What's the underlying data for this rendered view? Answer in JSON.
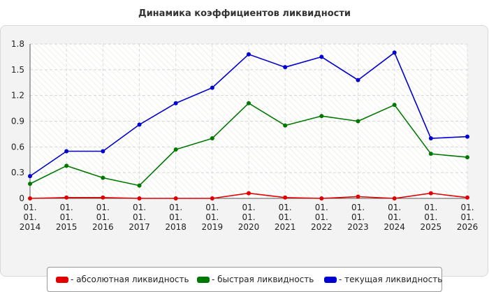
{
  "chart_data": {
    "type": "line",
    "title": "Динамика коэффициентов ликвидности",
    "xlabel": "",
    "ylabel": "",
    "categories": [
      "01. 01. 2014",
      "01. 01. 2015",
      "01. 01. 2016",
      "01. 01. 2017",
      "01. 01. 2018",
      "01. 01. 2019",
      "01. 01. 2020",
      "01. 01. 2021",
      "01. 01. 2022",
      "01. 01. 2023",
      "01. 01. 2024",
      "01. 01. 2025",
      "01. 01. 2026"
    ],
    "category_lines": [
      [
        "01.",
        "01.",
        "2014"
      ],
      [
        "01.",
        "01.",
        "2015"
      ],
      [
        "01.",
        "01.",
        "2016"
      ],
      [
        "01.",
        "01.",
        "2017"
      ],
      [
        "01.",
        "01.",
        "2018"
      ],
      [
        "01.",
        "01.",
        "2019"
      ],
      [
        "01.",
        "01.",
        "2020"
      ],
      [
        "01.",
        "01.",
        "2021"
      ],
      [
        "01.",
        "01.",
        "2022"
      ],
      [
        "01.",
        "01.",
        "2023"
      ],
      [
        "01.",
        "01.",
        "2024"
      ],
      [
        "01.",
        "01.",
        "2025"
      ],
      [
        "01.",
        "01.",
        "2026"
      ]
    ],
    "ylim": [
      0,
      1.8
    ],
    "yticks": [
      0,
      0.3,
      0.6,
      0.9,
      1.2,
      1.5,
      1.8
    ],
    "ytick_labels": [
      "0",
      "0.3",
      "0.6",
      "0.9",
      "1.2",
      "1.5",
      "1.8"
    ],
    "grid": true,
    "legend_position": "bottom",
    "series": [
      {
        "name": "- абсолютная ликвидность",
        "color": "#e00000",
        "values": [
          0.0,
          0.01,
          0.01,
          0.0,
          0.0,
          0.0,
          0.06,
          0.01,
          0.0,
          0.02,
          0.0,
          0.06,
          0.01
        ]
      },
      {
        "name": "- быстрая ликвидность",
        "color": "#007800",
        "values": [
          0.17,
          0.38,
          0.24,
          0.15,
          0.57,
          0.7,
          1.11,
          0.85,
          0.96,
          0.9,
          1.09,
          0.52,
          0.48
        ]
      },
      {
        "name": "- текущая ликвидность",
        "color": "#0000d0",
        "values": [
          0.26,
          0.55,
          0.55,
          0.86,
          1.11,
          1.29,
          1.68,
          1.53,
          1.65,
          1.38,
          1.7,
          0.7,
          0.72
        ]
      }
    ]
  }
}
